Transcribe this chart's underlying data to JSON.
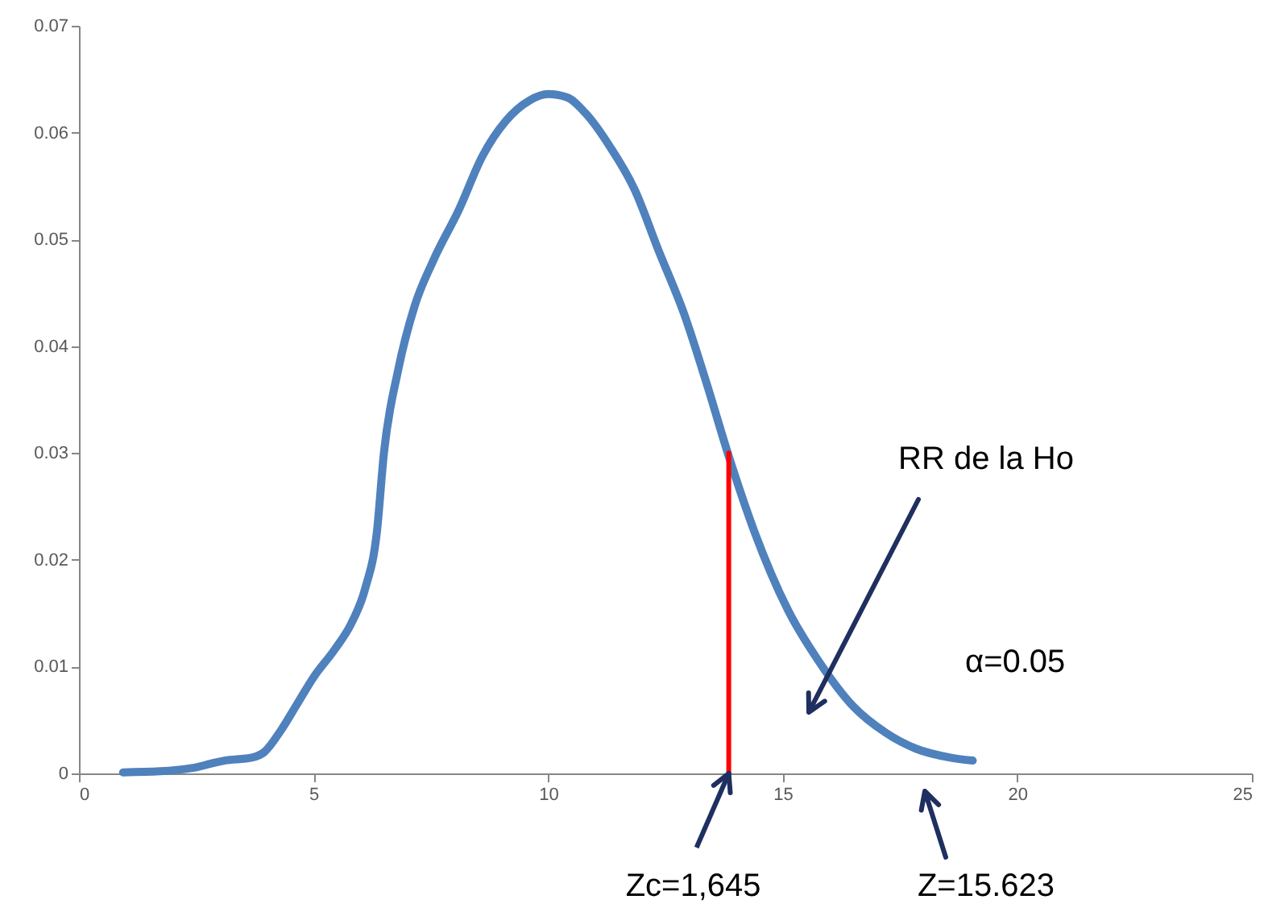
{
  "chart_data": {
    "type": "line",
    "xlim": [
      0,
      25
    ],
    "xticks": [
      0,
      5,
      10,
      15,
      20,
      25
    ],
    "ylim": [
      0,
      0.07
    ],
    "yticks": [
      0,
      0.01,
      0.02,
      0.03,
      0.04,
      0.05,
      0.06,
      0.07
    ],
    "grid": false,
    "marker": "none",
    "line_style": "solid",
    "series": [
      {
        "color": "#4f81bd",
        "x": [
          0.94,
          1.73,
          2.4,
          3.1,
          3.7,
          3.95,
          4.3,
          4.65,
          5.0,
          5.45,
          5.8,
          6.1,
          6.35,
          6.5,
          6.8,
          7.15,
          7.55,
          8.1,
          8.6,
          9.1,
          9.6,
          10.0,
          10.4,
          10.8,
          11.3,
          11.85,
          12.35,
          12.9,
          13.4,
          13.85,
          14.4,
          15.1,
          15.8,
          16.5,
          17.2,
          17.85,
          18.55,
          19.05
        ],
        "values": [
          0.0001,
          0.0002,
          0.0005,
          0.0012,
          0.0015,
          0.002,
          0.004,
          0.0065,
          0.009,
          0.0116,
          0.014,
          0.0173,
          0.0226,
          0.03,
          0.0377,
          0.0437,
          0.048,
          0.0528,
          0.0578,
          0.0611,
          0.063,
          0.0636,
          0.0633,
          0.0618,
          0.0588,
          0.0546,
          0.049,
          0.043,
          0.0362,
          0.0297,
          0.0226,
          0.0154,
          0.0103,
          0.0063,
          0.0038,
          0.0023,
          0.0015,
          0.0012
        ]
      },
      {
        "color": "#ff0000",
        "x": [
          13.85,
          13.85
        ],
        "values": [
          0,
          0.03
        ]
      }
    ],
    "annotations": [
      "RR de la Ho",
      "α=0.05",
      {
        "text": "Zc=1,645",
        "x": 13.85,
        "y": 0
      },
      "Z=15.623"
    ]
  }
}
